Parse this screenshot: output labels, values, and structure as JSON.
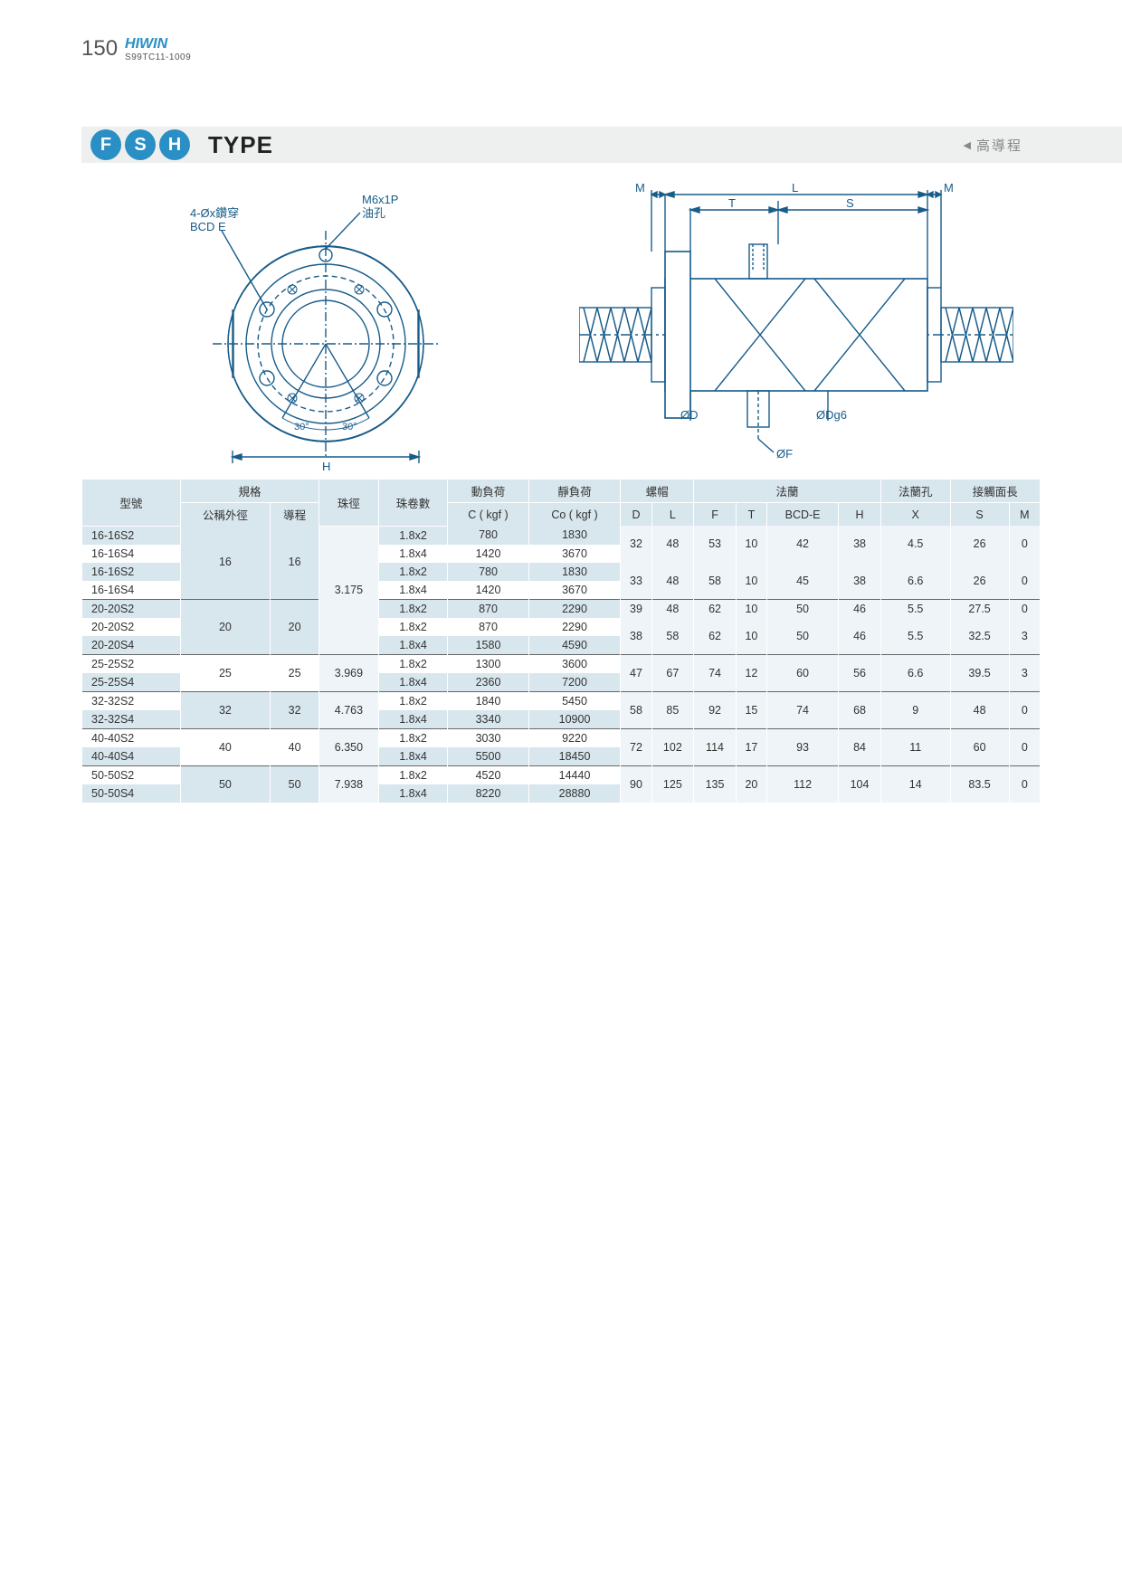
{
  "header": {
    "page_number": "150",
    "brand": "HIWIN",
    "code": "S99TC11-1009"
  },
  "type_bar": {
    "badges": [
      "F",
      "S",
      "H"
    ],
    "label": "TYPE",
    "lead_label": "高導程"
  },
  "diagram_left_labels": {
    "screw": "4-Øx鑽穿",
    "bcd": "BCD E",
    "oil_port": "M6x1P",
    "oil_label": "油孔",
    "angle1": "30°",
    "angle2": "30°",
    "h": "H"
  },
  "diagram_right_labels": {
    "m1": "M",
    "l": "L",
    "m2": "M",
    "t": "T",
    "s": "S",
    "od": "ØD",
    "odg6": "ØDg6",
    "of": "ØF"
  },
  "table": {
    "headers": {
      "model": "型號",
      "spec": "規格",
      "nom_od": "公稱外徑",
      "lead": "導程",
      "ball_dia": "珠徑",
      "turns": "珠卷數",
      "dyn_load": "動負荷",
      "dyn_unit": "C ( kgf )",
      "stat_load": "靜負荷",
      "stat_unit": "Co ( kgf )",
      "nut": "螺帽",
      "flange": "法蘭",
      "flange_hole": "法蘭孔",
      "contact": "接觸面長",
      "D": "D",
      "L": "L",
      "F": "F",
      "T": "T",
      "BCDE": "BCD-E",
      "H": "H",
      "X": "X",
      "S": "S",
      "M": "M"
    },
    "groups": [
      {
        "rows": [
          {
            "model": "16-16S2",
            "turns": "1.8x2",
            "c": "780",
            "co": "1830"
          },
          {
            "model": "16-16S4",
            "turns": "1.8x4",
            "c": "1420",
            "co": "3670"
          }
        ],
        "od": "16",
        "lead": "16",
        "ball": "3.175",
        "D": "32",
        "L": "48",
        "F": "53",
        "T": "10",
        "BCDE": "42",
        "H": "38",
        "X": "4.5",
        "S": "26",
        "M": "0",
        "first": true
      },
      {
        "rows": [
          {
            "model": "16-16S2",
            "turns": "1.8x2",
            "c": "780",
            "co": "1830"
          },
          {
            "model": "16-16S4",
            "turns": "1.8x4",
            "c": "1420",
            "co": "3670"
          }
        ],
        "od": "16",
        "lead": "16",
        "ball": "3.175",
        "D": "33",
        "L": "48",
        "F": "58",
        "T": "10",
        "BCDE": "45",
        "H": "38",
        "X": "6.6",
        "S": "26",
        "M": "0"
      },
      {
        "rows": [
          {
            "model": "20-20S2",
            "turns": "1.8x2",
            "c": "870",
            "co": "2290"
          }
        ],
        "od": "20",
        "lead": "20",
        "ball": "3.175",
        "D": "39",
        "L": "48",
        "F": "62",
        "T": "10",
        "BCDE": "50",
        "H": "46",
        "X": "5.5",
        "S": "27.5",
        "M": "0",
        "hr": true
      },
      {
        "rows": [
          {
            "model": "20-20S2",
            "turns": "1.8x2",
            "c": "870",
            "co": "2290"
          },
          {
            "model": "20-20S4",
            "turns": "1.8x4",
            "c": "1580",
            "co": "4590"
          }
        ],
        "od": "20",
        "lead": "20",
        "ball": "3.175",
        "D": "38",
        "L": "58",
        "F": "62",
        "T": "10",
        "BCDE": "50",
        "H": "46",
        "X": "5.5",
        "S": "32.5",
        "M": "3"
      },
      {
        "rows": [
          {
            "model": "25-25S2",
            "turns": "1.8x2",
            "c": "1300",
            "co": "3600"
          },
          {
            "model": "25-25S4",
            "turns": "1.8x4",
            "c": "2360",
            "co": "7200"
          }
        ],
        "od": "25",
        "lead": "25",
        "ball": "3.969",
        "D": "47",
        "L": "67",
        "F": "74",
        "T": "12",
        "BCDE": "60",
        "H": "56",
        "X": "6.6",
        "S": "39.5",
        "M": "3",
        "hr": true
      },
      {
        "rows": [
          {
            "model": "32-32S2",
            "turns": "1.8x2",
            "c": "1840",
            "co": "5450"
          },
          {
            "model": "32-32S4",
            "turns": "1.8x4",
            "c": "3340",
            "co": "10900"
          }
        ],
        "od": "32",
        "lead": "32",
        "ball": "4.763",
        "D": "58",
        "L": "85",
        "F": "92",
        "T": "15",
        "BCDE": "74",
        "H": "68",
        "X": "9",
        "S": "48",
        "M": "0",
        "hr": true
      },
      {
        "rows": [
          {
            "model": "40-40S2",
            "turns": "1.8x2",
            "c": "3030",
            "co": "9220"
          },
          {
            "model": "40-40S4",
            "turns": "1.8x4",
            "c": "5500",
            "co": "18450"
          }
        ],
        "od": "40",
        "lead": "40",
        "ball": "6.350",
        "D": "72",
        "L": "102",
        "F": "114",
        "T": "17",
        "BCDE": "93",
        "H": "84",
        "X": "11",
        "S": "60",
        "M": "0",
        "hr": true
      },
      {
        "rows": [
          {
            "model": "50-50S2",
            "turns": "1.8x2",
            "c": "4520",
            "co": "14440"
          },
          {
            "model": "50-50S4",
            "turns": "1.8x4",
            "c": "8220",
            "co": "28880"
          }
        ],
        "od": "50",
        "lead": "50",
        "ball": "7.938",
        "D": "90",
        "L": "125",
        "F": "135",
        "T": "20",
        "BCDE": "112",
        "H": "104",
        "X": "14",
        "S": "83.5",
        "M": "0",
        "hr": true
      }
    ],
    "od_lead_merge": [
      {
        "start": 0,
        "span": 4,
        "od": "16",
        "lead": "16"
      },
      {
        "start": 4,
        "span": 3,
        "od": "20",
        "lead": "20"
      },
      {
        "start": 7,
        "span": 2,
        "od": "25",
        "lead": "25"
      },
      {
        "start": 9,
        "span": 2,
        "od": "32",
        "lead": "32"
      },
      {
        "start": 11,
        "span": 2,
        "od": "40",
        "lead": "40"
      },
      {
        "start": 13,
        "span": 2,
        "od": "50",
        "lead": "50"
      }
    ],
    "ball_merge": [
      {
        "start": 0,
        "span": 7,
        "ball": "3.175"
      },
      {
        "start": 7,
        "span": 2,
        "ball": "3.969"
      },
      {
        "start": 9,
        "span": 2,
        "ball": "4.763"
      },
      {
        "start": 11,
        "span": 2,
        "ball": "6.350"
      },
      {
        "start": 13,
        "span": 2,
        "ball": "7.938"
      }
    ]
  },
  "colors": {
    "brand_blue": "#2a8fc4",
    "header_bg": "#d8e6ed",
    "row_alt": "#d8e6ed",
    "diagram_stroke": "#185c8a"
  }
}
